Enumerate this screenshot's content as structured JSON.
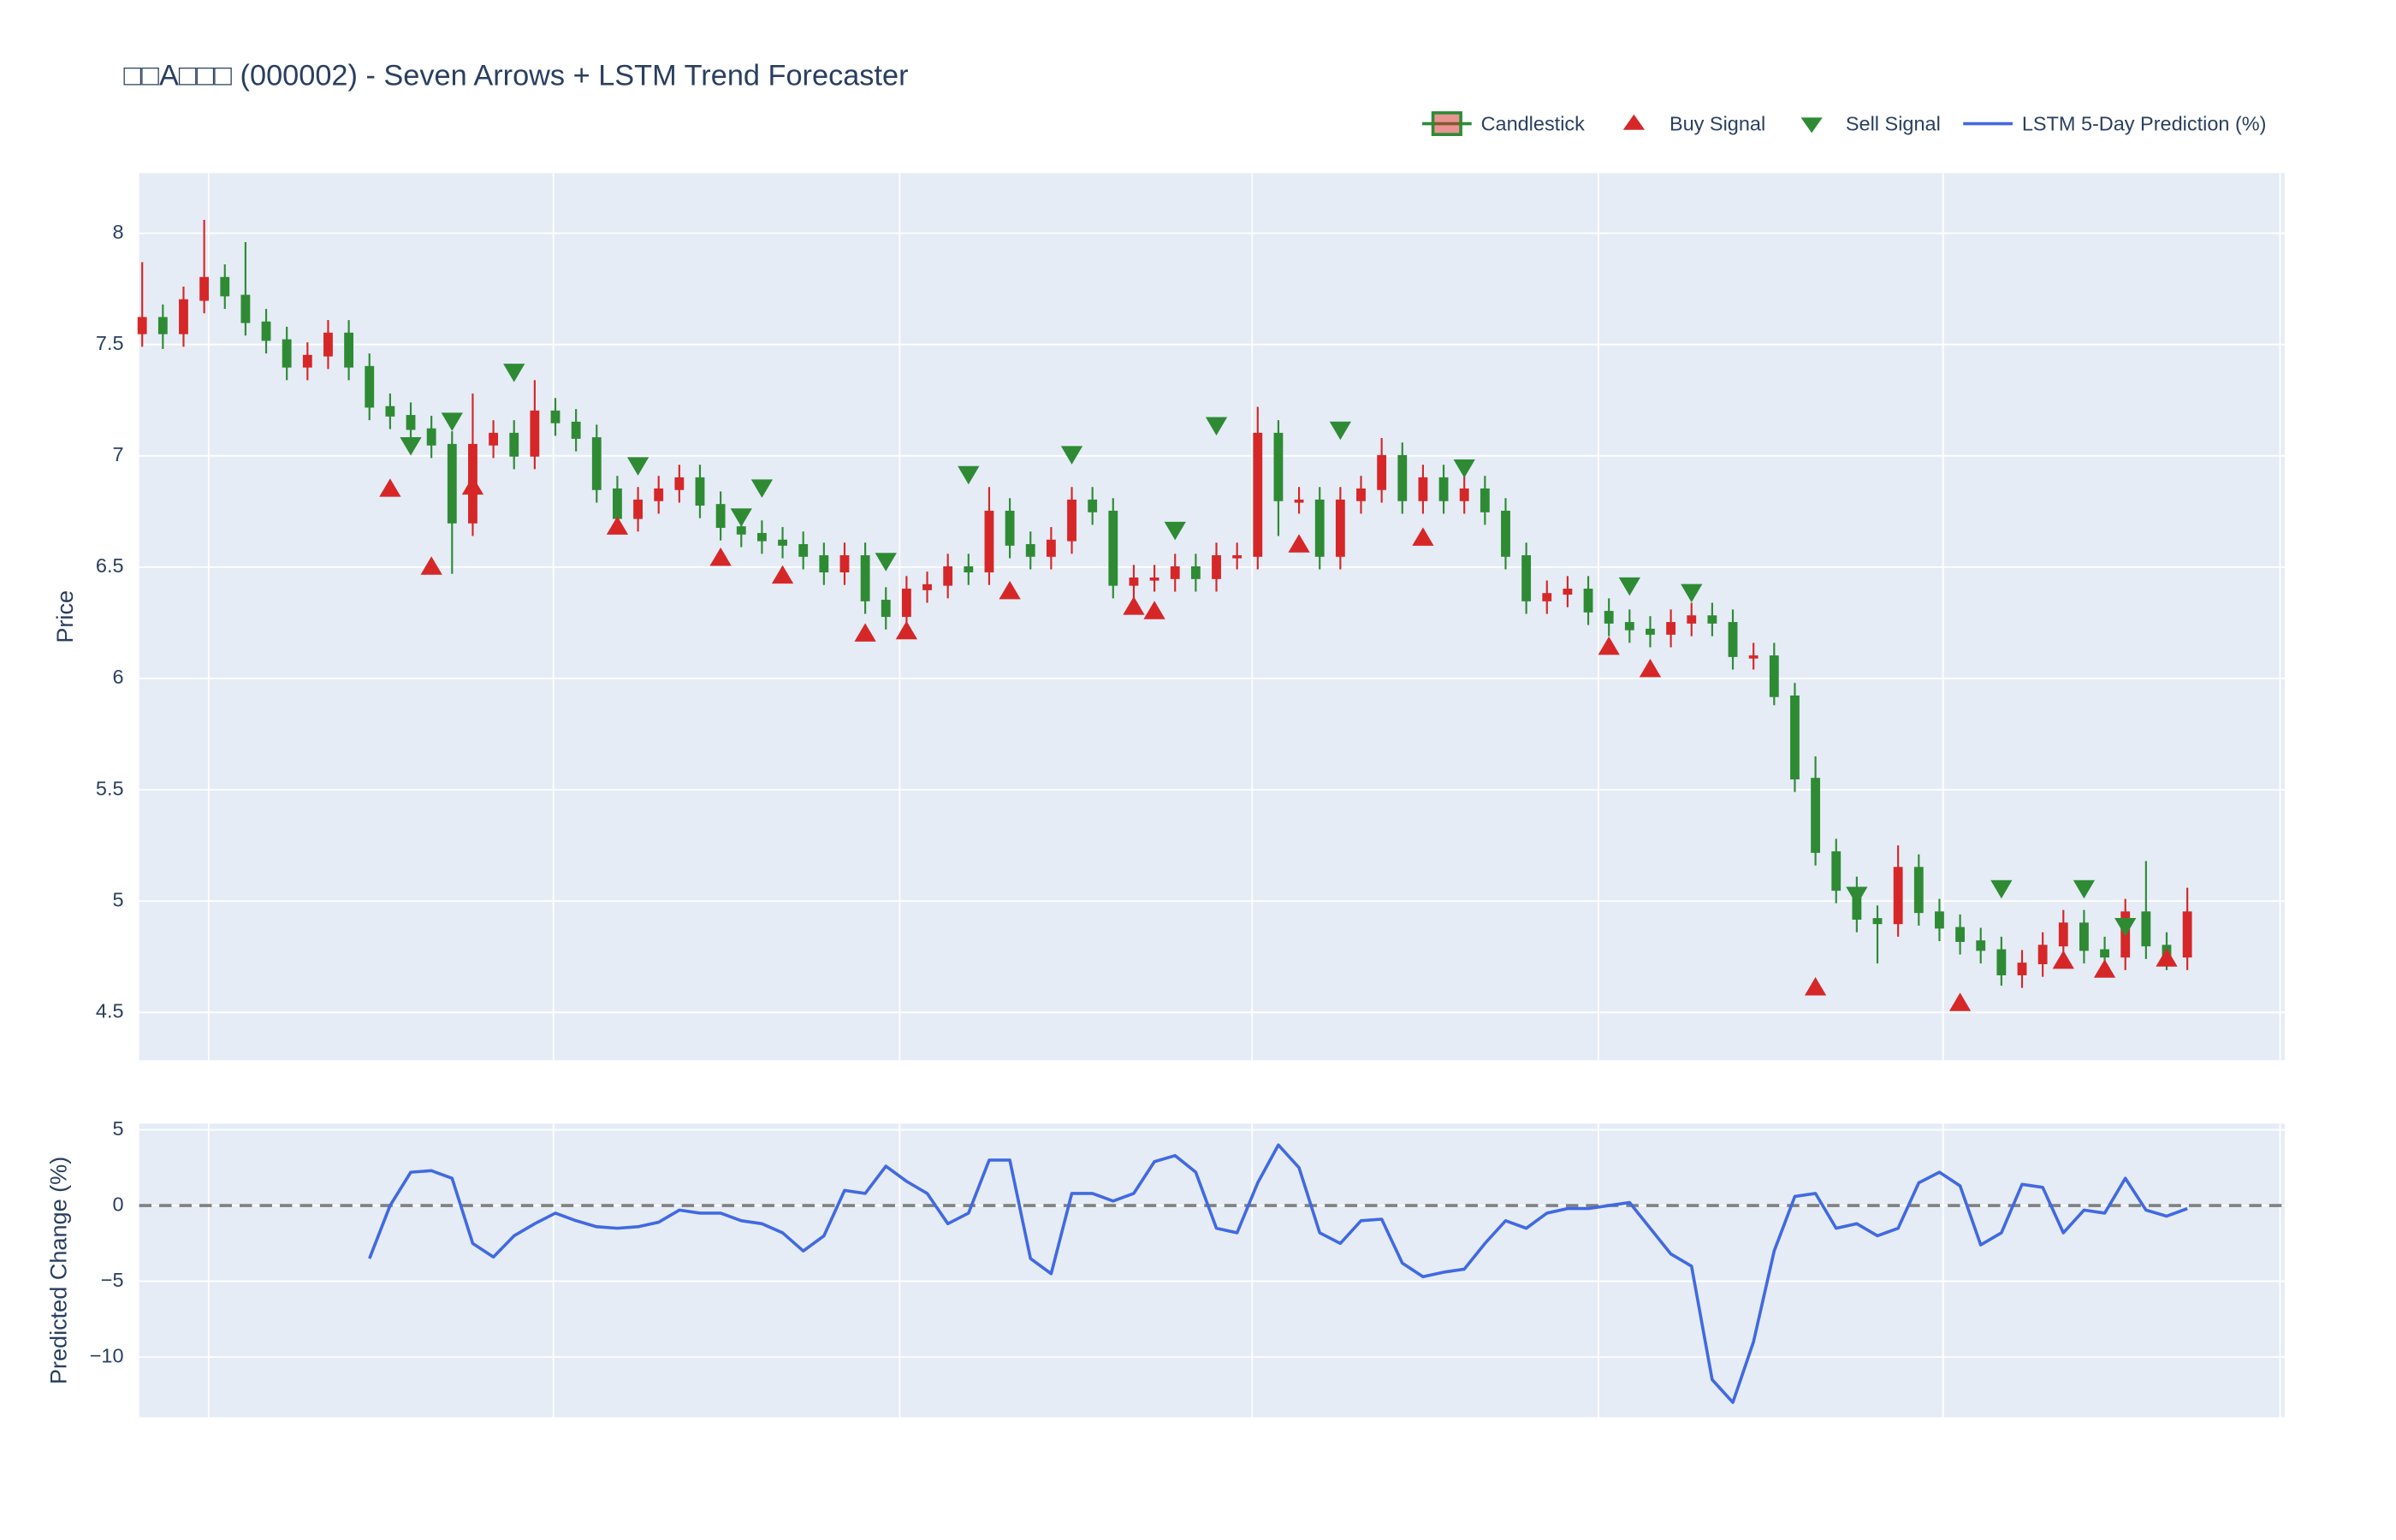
{
  "chart_data": [
    {
      "type": "candlestick",
      "title": "□□A□□□ (000002) - Seven Arrows + LSTM Trend Forecaster",
      "ylabel": "Price",
      "name": "Candlestick",
      "increasing_color": "#d62728",
      "decreasing_color": "#2e8b34",
      "ylim": [
        4.285,
        8.27
      ],
      "yticks": [
        4.5,
        5,
        5.5,
        6,
        6.5,
        7,
        7.5,
        8
      ],
      "grid": true,
      "open": [
        7.55,
        7.62,
        7.55,
        7.7,
        7.8,
        7.72,
        7.6,
        7.52,
        7.4,
        7.45,
        7.55,
        7.4,
        7.22,
        7.18,
        7.12,
        7.05,
        6.7,
        7.05,
        7.1,
        7.0,
        7.2,
        7.15,
        7.08,
        6.85,
        6.72,
        6.8,
        6.85,
        6.9,
        6.78,
        6.68,
        6.65,
        6.62,
        6.6,
        6.55,
        6.48,
        6.55,
        6.35,
        6.28,
        6.4,
        6.42,
        6.5,
        6.48,
        6.75,
        6.6,
        6.55,
        6.62,
        6.8,
        6.75,
        6.42,
        6.45,
        6.45,
        6.5,
        6.45,
        6.55,
        6.55,
        7.1,
        6.8,
        6.8,
        6.55,
        6.8,
        6.85,
        7.0,
        6.8,
        6.9,
        6.8,
        6.85,
        6.75,
        6.55,
        6.35,
        6.38,
        6.4,
        6.3,
        6.25,
        6.22,
        6.2,
        6.25,
        6.28,
        6.25,
        6.1,
        6.1,
        5.92,
        5.55,
        5.22,
        5.05,
        4.92,
        4.9,
        5.15,
        4.95,
        4.88,
        4.82,
        4.78,
        4.67,
        4.72,
        4.8,
        4.9,
        4.78,
        4.75,
        4.95,
        4.8,
        4.75
      ],
      "high": [
        7.87,
        7.68,
        7.76,
        8.06,
        7.86,
        7.96,
        7.66,
        7.58,
        7.51,
        7.61,
        7.61,
        7.46,
        7.28,
        7.24,
        7.18,
        7.11,
        7.28,
        7.16,
        7.16,
        7.34,
        7.26,
        7.21,
        7.14,
        6.91,
        6.86,
        6.91,
        6.96,
        6.96,
        6.84,
        6.74,
        6.71,
        6.68,
        6.66,
        6.61,
        6.61,
        6.61,
        6.41,
        6.46,
        6.48,
        6.56,
        6.56,
        6.86,
        6.81,
        6.66,
        6.68,
        6.86,
        6.86,
        6.81,
        6.51,
        6.51,
        6.56,
        6.56,
        6.61,
        6.61,
        7.22,
        7.16,
        6.86,
        6.86,
        6.86,
        6.91,
        7.08,
        7.06,
        6.96,
        6.96,
        6.91,
        6.91,
        6.81,
        6.61,
        6.44,
        6.46,
        6.46,
        6.36,
        6.31,
        6.28,
        6.31,
        6.34,
        6.34,
        6.31,
        6.16,
        6.16,
        5.98,
        5.65,
        5.28,
        5.11,
        4.98,
        5.25,
        5.21,
        5.01,
        4.94,
        4.88,
        4.84,
        4.78,
        4.86,
        4.96,
        4.96,
        4.84,
        5.01,
        5.18,
        4.86,
        5.06
      ],
      "low": [
        7.49,
        7.48,
        7.49,
        7.64,
        7.66,
        7.54,
        7.46,
        7.34,
        7.34,
        7.39,
        7.34,
        7.16,
        7.12,
        7.06,
        6.99,
        6.47,
        6.64,
        6.99,
        6.94,
        6.94,
        7.09,
        7.02,
        6.79,
        6.66,
        6.66,
        6.74,
        6.79,
        6.72,
        6.62,
        6.59,
        6.56,
        6.54,
        6.49,
        6.42,
        6.42,
        6.29,
        6.22,
        6.22,
        6.34,
        6.36,
        6.42,
        6.42,
        6.54,
        6.49,
        6.49,
        6.56,
        6.69,
        6.36,
        6.36,
        6.39,
        6.39,
        6.39,
        6.39,
        6.49,
        6.49,
        6.64,
        6.74,
        6.49,
        6.49,
        6.74,
        6.79,
        6.74,
        6.74,
        6.74,
        6.74,
        6.69,
        6.49,
        6.29,
        6.29,
        6.32,
        6.24,
        6.19,
        6.16,
        6.14,
        6.14,
        6.19,
        6.19,
        6.04,
        6.04,
        5.88,
        5.49,
        5.16,
        4.99,
        4.86,
        4.72,
        4.84,
        4.89,
        4.82,
        4.76,
        4.72,
        4.62,
        4.61,
        4.66,
        4.74,
        4.72,
        4.69,
        4.69,
        4.74,
        4.69,
        4.69
      ],
      "close": [
        7.62,
        7.55,
        7.7,
        7.8,
        7.72,
        7.6,
        7.52,
        7.4,
        7.45,
        7.55,
        7.4,
        7.22,
        7.18,
        7.12,
        7.05,
        6.7,
        7.05,
        7.1,
        7.0,
        7.2,
        7.15,
        7.08,
        6.85,
        6.72,
        6.8,
        6.85,
        6.9,
        6.78,
        6.68,
        6.65,
        6.62,
        6.6,
        6.55,
        6.48,
        6.55,
        6.35,
        6.28,
        6.4,
        6.42,
        6.5,
        6.48,
        6.75,
        6.6,
        6.55,
        6.62,
        6.8,
        6.75,
        6.42,
        6.45,
        6.45,
        6.5,
        6.45,
        6.55,
        6.55,
        7.1,
        6.8,
        6.8,
        6.55,
        6.8,
        6.85,
        7.0,
        6.8,
        6.9,
        6.8,
        6.85,
        6.75,
        6.55,
        6.35,
        6.38,
        6.4,
        6.3,
        6.25,
        6.22,
        6.2,
        6.25,
        6.28,
        6.25,
        6.1,
        6.1,
        5.92,
        5.55,
        5.22,
        5.05,
        4.92,
        4.9,
        5.15,
        4.95,
        4.88,
        4.82,
        4.78,
        4.67,
        4.72,
        4.8,
        4.9,
        4.78,
        4.75,
        4.95,
        4.8,
        4.75,
        4.95
      ],
      "series": [
        {
          "name": "Buy Signal",
          "marker": "triangle-up",
          "color": "#d62728",
          "values": [
            null,
            null,
            null,
            null,
            null,
            null,
            null,
            null,
            null,
            null,
            null,
            null,
            6.85,
            null,
            6.5,
            null,
            6.86,
            null,
            null,
            null,
            null,
            null,
            null,
            6.68,
            null,
            null,
            null,
            null,
            6.54,
            null,
            null,
            6.46,
            null,
            null,
            null,
            6.2,
            null,
            6.21,
            null,
            null,
            null,
            null,
            6.39,
            null,
            null,
            null,
            null,
            null,
            6.32,
            6.3,
            null,
            null,
            null,
            null,
            null,
            null,
            6.6,
            null,
            null,
            null,
            null,
            null,
            6.63,
            null,
            null,
            null,
            null,
            null,
            null,
            null,
            null,
            6.14,
            null,
            6.04,
            null,
            null,
            null,
            null,
            null,
            null,
            null,
            4.61,
            null,
            null,
            null,
            null,
            null,
            null,
            4.54,
            null,
            null,
            null,
            null,
            4.73,
            null,
            4.69,
            null,
            null,
            4.74,
            null
          ]
        },
        {
          "name": "Sell Signal",
          "marker": "triangle-down",
          "color": "#2e8b34",
          "values": [
            null,
            null,
            null,
            null,
            null,
            null,
            null,
            null,
            null,
            null,
            null,
            null,
            null,
            7.05,
            null,
            7.16,
            null,
            null,
            7.38,
            null,
            null,
            null,
            null,
            null,
            6.96,
            null,
            null,
            null,
            null,
            6.73,
            6.86,
            null,
            null,
            null,
            null,
            null,
            6.53,
            null,
            null,
            null,
            6.92,
            null,
            null,
            null,
            null,
            7.01,
            null,
            null,
            null,
            null,
            6.67,
            null,
            7.14,
            null,
            null,
            null,
            null,
            null,
            7.12,
            null,
            null,
            null,
            null,
            null,
            6.95,
            null,
            null,
            null,
            null,
            null,
            null,
            null,
            6.42,
            null,
            null,
            6.39,
            null,
            null,
            null,
            null,
            null,
            null,
            null,
            5.03,
            null,
            null,
            null,
            null,
            null,
            null,
            5.06,
            null,
            null,
            null,
            5.06,
            null,
            4.89,
            null,
            null,
            null
          ]
        }
      ]
    },
    {
      "type": "line",
      "ylabel": "Predicted Change (%)",
      "ylim": [
        -13.98,
        5.41
      ],
      "yticks": [
        5,
        0,
        {
          "value": -5,
          "label": "−5"
        },
        {
          "value": -10,
          "label": "−10"
        }
      ],
      "grid": true,
      "hline": 0,
      "series": [
        {
          "name": "LSTM 5-Day Prediction (%)",
          "color": "#4169e1",
          "values": [
            null,
            null,
            null,
            null,
            null,
            null,
            null,
            null,
            null,
            null,
            null,
            -3.5,
            0,
            2.2,
            2.3,
            1.8,
            -2.5,
            -3.4,
            -2.0,
            -1.2,
            -0.5,
            -1.0,
            -1.4,
            -1.5,
            -1.4,
            -1.1,
            -0.3,
            -0.5,
            -0.5,
            -1.0,
            -1.2,
            -1.8,
            -3.0,
            -2.0,
            1.0,
            0.8,
            2.6,
            1.6,
            0.8,
            -1.2,
            -0.5,
            3.0,
            3.0,
            -3.5,
            -4.5,
            0.8,
            0.8,
            0.3,
            0.8,
            2.9,
            3.3,
            2.2,
            -1.5,
            -1.8,
            1.5,
            4.0,
            2.5,
            -1.8,
            -2.5,
            -1.0,
            -0.9,
            -3.8,
            -4.7,
            -4.4,
            -4.2,
            -2.5,
            -1.0,
            -1.5,
            -0.5,
            -0.2,
            -0.2,
            0.0,
            0.2,
            -1.5,
            -3.2,
            -4.0,
            -11.5,
            -13.0,
            -9.0,
            -3.0,
            0.6,
            0.8,
            -1.5,
            -1.2,
            -2.0,
            -1.5,
            1.5,
            2.2,
            1.3,
            -2.6,
            -1.8,
            1.4,
            1.2,
            -1.8,
            -0.3,
            -0.5,
            1.8,
            -0.3,
            -0.7,
            -0.2
          ]
        }
      ]
    }
  ]
}
